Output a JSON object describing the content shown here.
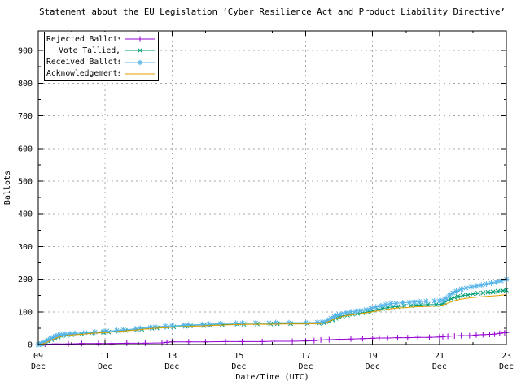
{
  "chart_data": {
    "type": "line",
    "title": "Statement about the EU Legislation ‘Cyber Resilience Act and Product Liability Directive’",
    "x_axis": {
      "label": "Date/Time (UTC)",
      "unit": "day of December",
      "range": [
        9,
        23
      ],
      "major_ticks": [
        {
          "value": 9,
          "label": "09 Dec"
        },
        {
          "value": 11,
          "label": "11 Dec"
        },
        {
          "value": 13,
          "label": "13 Dec"
        },
        {
          "value": 15,
          "label": "15 Dec"
        },
        {
          "value": 17,
          "label": "17 Dec"
        },
        {
          "value": 19,
          "label": "19 Dec"
        },
        {
          "value": 21,
          "label": "21 Dec"
        },
        {
          "value": 23,
          "label": "23 Dec"
        }
      ],
      "minor_ticks": [
        10,
        12,
        14,
        16,
        18,
        20,
        22
      ]
    },
    "y_axis": {
      "label": "Ballots",
      "range": [
        0,
        960
      ],
      "major_ticks": [
        0,
        100,
        200,
        300,
        400,
        500,
        600,
        700,
        800,
        900
      ],
      "minor_ticks": [
        50,
        150,
        250,
        350,
        450,
        550,
        650,
        750,
        850
      ]
    },
    "grid": {
      "shown": true,
      "style": "dashed",
      "color": "#a8a8a8"
    },
    "legend": {
      "position": "top-left",
      "box": true
    },
    "colors": {
      "background": "#ffffff",
      "border": "#000000",
      "text": "#000000"
    },
    "series": [
      {
        "name": "Rejected Ballots",
        "color": "#9400d3",
        "marker": "plus",
        "points": [
          [
            9.0,
            0
          ],
          [
            9.2,
            1
          ],
          [
            9.5,
            2
          ],
          [
            9.9,
            2
          ],
          [
            10.3,
            3
          ],
          [
            10.8,
            3
          ],
          [
            11.2,
            3
          ],
          [
            11.65,
            4
          ],
          [
            12.2,
            4
          ],
          [
            12.7,
            5
          ],
          [
            12.85,
            7
          ],
          [
            13.0,
            8
          ],
          [
            13.5,
            8
          ],
          [
            14.0,
            8
          ],
          [
            14.6,
            9
          ],
          [
            15.1,
            9
          ],
          [
            15.7,
            9
          ],
          [
            16.05,
            10
          ],
          [
            16.6,
            10
          ],
          [
            17.0,
            11
          ],
          [
            17.25,
            12
          ],
          [
            17.45,
            14
          ],
          [
            17.7,
            15
          ],
          [
            18.0,
            16
          ],
          [
            18.35,
            17
          ],
          [
            18.7,
            18
          ],
          [
            19.0,
            19
          ],
          [
            19.2,
            20
          ],
          [
            19.45,
            20
          ],
          [
            19.75,
            21
          ],
          [
            20.05,
            21
          ],
          [
            20.35,
            22
          ],
          [
            20.7,
            22
          ],
          [
            21.0,
            23
          ],
          [
            21.1,
            24
          ],
          [
            21.25,
            25
          ],
          [
            21.45,
            26
          ],
          [
            21.65,
            27
          ],
          [
            21.9,
            27
          ],
          [
            22.1,
            29
          ],
          [
            22.3,
            30
          ],
          [
            22.5,
            31
          ],
          [
            22.65,
            32
          ],
          [
            22.8,
            34
          ],
          [
            22.95,
            36
          ],
          [
            23.0,
            37
          ]
        ]
      },
      {
        "name": "Vote Tallied,",
        "color": "#009e73",
        "marker": "cross",
        "points": [
          [
            9.0,
            0
          ],
          [
            9.1,
            2
          ],
          [
            9.2,
            5
          ],
          [
            9.3,
            10
          ],
          [
            9.4,
            15
          ],
          [
            9.5,
            19
          ],
          [
            9.6,
            23
          ],
          [
            9.7,
            26
          ],
          [
            9.85,
            28
          ],
          [
            10.0,
            30
          ],
          [
            10.3,
            32
          ],
          [
            10.6,
            35
          ],
          [
            10.95,
            37
          ],
          [
            11.1,
            38
          ],
          [
            11.4,
            41
          ],
          [
            11.6,
            43
          ],
          [
            11.95,
            45
          ],
          [
            12.1,
            47
          ],
          [
            12.4,
            50
          ],
          [
            12.55,
            51
          ],
          [
            12.85,
            53
          ],
          [
            13.05,
            54
          ],
          [
            13.4,
            56
          ],
          [
            13.55,
            57
          ],
          [
            13.95,
            58
          ],
          [
            14.15,
            59
          ],
          [
            14.5,
            61
          ],
          [
            14.95,
            62
          ],
          [
            15.15,
            62
          ],
          [
            15.55,
            63
          ],
          [
            15.95,
            63
          ],
          [
            16.15,
            64
          ],
          [
            16.55,
            64
          ],
          [
            17.05,
            64
          ],
          [
            17.4,
            65
          ],
          [
            17.55,
            66
          ],
          [
            17.7,
            70
          ],
          [
            17.8,
            75
          ],
          [
            17.9,
            80
          ],
          [
            18.0,
            84
          ],
          [
            18.1,
            87
          ],
          [
            18.25,
            90
          ],
          [
            18.4,
            93
          ],
          [
            18.55,
            95
          ],
          [
            18.7,
            97
          ],
          [
            18.85,
            100
          ],
          [
            19.0,
            103
          ],
          [
            19.15,
            107
          ],
          [
            19.3,
            110
          ],
          [
            19.45,
            113
          ],
          [
            19.6,
            115
          ],
          [
            19.75,
            116
          ],
          [
            19.95,
            118
          ],
          [
            20.15,
            119
          ],
          [
            20.3,
            120
          ],
          [
            20.45,
            121
          ],
          [
            20.65,
            122
          ],
          [
            20.9,
            122
          ],
          [
            21.05,
            123
          ],
          [
            21.15,
            128
          ],
          [
            21.25,
            135
          ],
          [
            21.35,
            140
          ],
          [
            21.45,
            144
          ],
          [
            21.55,
            147
          ],
          [
            21.7,
            150
          ],
          [
            21.85,
            152
          ],
          [
            22.0,
            155
          ],
          [
            22.15,
            157
          ],
          [
            22.3,
            158
          ],
          [
            22.45,
            160
          ],
          [
            22.6,
            161
          ],
          [
            22.75,
            163
          ],
          [
            22.9,
            165
          ],
          [
            23.0,
            167
          ]
        ]
      },
      {
        "name": "Received Ballots",
        "color": "#56b4e9",
        "marker": "asterisk",
        "points": [
          [
            9.0,
            0
          ],
          [
            9.08,
            2
          ],
          [
            9.15,
            5
          ],
          [
            9.22,
            9
          ],
          [
            9.3,
            14
          ],
          [
            9.38,
            18
          ],
          [
            9.45,
            22
          ],
          [
            9.52,
            25
          ],
          [
            9.6,
            28
          ],
          [
            9.7,
            30
          ],
          [
            9.8,
            32
          ],
          [
            9.95,
            33
          ],
          [
            10.1,
            34
          ],
          [
            10.4,
            36
          ],
          [
            10.7,
            38
          ],
          [
            10.95,
            40
          ],
          [
            11.05,
            41
          ],
          [
            11.35,
            43
          ],
          [
            11.55,
            45
          ],
          [
            11.9,
            48
          ],
          [
            12.05,
            50
          ],
          [
            12.35,
            52
          ],
          [
            12.5,
            54
          ],
          [
            12.8,
            56
          ],
          [
            13.0,
            57
          ],
          [
            13.35,
            59
          ],
          [
            13.5,
            60
          ],
          [
            13.9,
            61
          ],
          [
            14.1,
            62
          ],
          [
            14.45,
            64
          ],
          [
            14.9,
            65
          ],
          [
            15.1,
            65
          ],
          [
            15.5,
            66
          ],
          [
            15.9,
            66
          ],
          [
            16.1,
            67
          ],
          [
            16.5,
            67
          ],
          [
            17.0,
            67
          ],
          [
            17.35,
            68
          ],
          [
            17.5,
            69
          ],
          [
            17.65,
            74
          ],
          [
            17.75,
            80
          ],
          [
            17.85,
            86
          ],
          [
            17.95,
            90
          ],
          [
            18.05,
            93
          ],
          [
            18.2,
            97
          ],
          [
            18.35,
            100
          ],
          [
            18.5,
            102
          ],
          [
            18.65,
            104
          ],
          [
            18.8,
            107
          ],
          [
            18.95,
            111
          ],
          [
            19.1,
            115
          ],
          [
            19.25,
            119
          ],
          [
            19.4,
            122
          ],
          [
            19.55,
            125
          ],
          [
            19.7,
            126
          ],
          [
            19.9,
            128
          ],
          [
            20.1,
            129
          ],
          [
            20.25,
            130
          ],
          [
            20.4,
            131
          ],
          [
            20.6,
            132
          ],
          [
            20.85,
            133
          ],
          [
            21.0,
            134
          ],
          [
            21.1,
            135
          ],
          [
            21.2,
            142
          ],
          [
            21.3,
            152
          ],
          [
            21.4,
            158
          ],
          [
            21.5,
            163
          ],
          [
            21.65,
            169
          ],
          [
            21.8,
            173
          ],
          [
            21.95,
            176
          ],
          [
            22.1,
            179
          ],
          [
            22.25,
            182
          ],
          [
            22.4,
            185
          ],
          [
            22.55,
            188
          ],
          [
            22.7,
            191
          ],
          [
            22.85,
            195
          ],
          [
            23.0,
            200
          ]
        ]
      },
      {
        "name": "Acknowledgements",
        "color": "#e69f00",
        "marker": "none",
        "points": [
          [
            9.0,
            0
          ],
          [
            9.1,
            1
          ],
          [
            9.2,
            4
          ],
          [
            9.3,
            9
          ],
          [
            9.4,
            14
          ],
          [
            9.5,
            18
          ],
          [
            9.6,
            22
          ],
          [
            9.7,
            25
          ],
          [
            9.85,
            27
          ],
          [
            10.0,
            29
          ],
          [
            10.3,
            31
          ],
          [
            10.6,
            34
          ],
          [
            11.0,
            36
          ],
          [
            11.4,
            40
          ],
          [
            11.9,
            44
          ],
          [
            12.4,
            49
          ],
          [
            12.9,
            52
          ],
          [
            13.4,
            55
          ],
          [
            13.9,
            57
          ],
          [
            14.4,
            59
          ],
          [
            14.9,
            61
          ],
          [
            15.4,
            62
          ],
          [
            15.9,
            62
          ],
          [
            16.4,
            63
          ],
          [
            17.0,
            63
          ],
          [
            17.45,
            64
          ],
          [
            17.6,
            67
          ],
          [
            17.75,
            73
          ],
          [
            17.9,
            79
          ],
          [
            18.05,
            84
          ],
          [
            18.2,
            88
          ],
          [
            18.4,
            91
          ],
          [
            18.6,
            94
          ],
          [
            18.8,
            97
          ],
          [
            19.0,
            100
          ],
          [
            19.2,
            104
          ],
          [
            19.4,
            107
          ],
          [
            19.6,
            110
          ],
          [
            19.8,
            112
          ],
          [
            20.0,
            113
          ],
          [
            20.25,
            115
          ],
          [
            20.5,
            116
          ],
          [
            20.75,
            117
          ],
          [
            21.0,
            118
          ],
          [
            21.15,
            122
          ],
          [
            21.3,
            129
          ],
          [
            21.45,
            134
          ],
          [
            21.6,
            138
          ],
          [
            21.8,
            141
          ],
          [
            22.0,
            144
          ],
          [
            22.25,
            146
          ],
          [
            22.5,
            148
          ],
          [
            22.75,
            150
          ],
          [
            23.0,
            153
          ]
        ]
      }
    ]
  }
}
